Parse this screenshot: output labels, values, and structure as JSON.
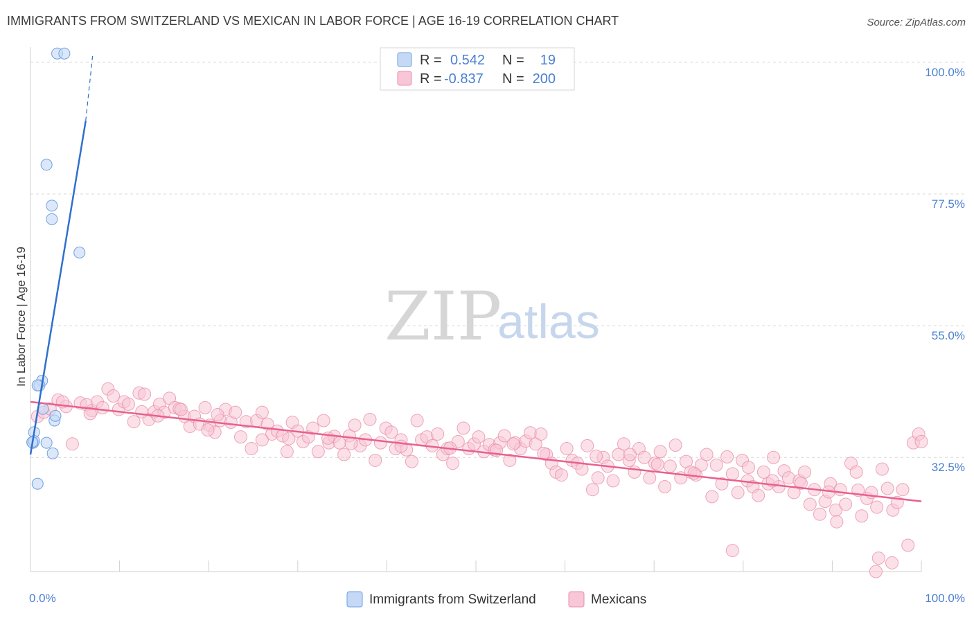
{
  "title": "IMMIGRANTS FROM SWITZERLAND VS MEXICAN IN LABOR FORCE | AGE 16-19 CORRELATION CHART",
  "source": "Source: ZipAtlas.com",
  "watermark": {
    "zip": "ZIP",
    "atlas": "atlas"
  },
  "colors": {
    "blue_fill": "#c5d9f7",
    "blue_stroke": "#6f9fe0",
    "blue_line": "#2f6fcf",
    "pink_fill": "#f8c6d6",
    "pink_stroke": "#ea8fae",
    "pink_line": "#e8608e",
    "tick_label": "#4a7fd1",
    "grid": "#d8d8d8"
  },
  "legend": {
    "r_label": "R =",
    "n_label": "N =",
    "series1_r": "0.542",
    "series1_n": "19",
    "series2_r": "-0.837",
    "series2_n": "200"
  },
  "bottom_legend": [
    "Immigrants from Switzerland",
    "Mexicans"
  ],
  "chart_data": {
    "type": "scatter",
    "title": "IMMIGRANTS FROM SWITZERLAND VS MEXICAN IN LABOR FORCE | AGE 16-19 CORRELATION CHART",
    "xlabel": "",
    "ylabel": "In Labor Force | Age 16-19",
    "xlim": [
      0,
      100
    ],
    "ylim": [
      13,
      102
    ],
    "x_tick_labels": [
      "0.0%",
      "100.0%"
    ],
    "y_ticks": [
      32.5,
      55.0,
      77.5,
      100.0
    ],
    "y_tick_labels": [
      "32.5%",
      "55.0%",
      "77.5%",
      "100.0%"
    ],
    "grid": "horizontal dashed",
    "legend_position": "top-center",
    "series": [
      {
        "name": "Immigrants from Switzerland",
        "color": "#6f9fe0",
        "r": 0.542,
        "n": 19,
        "points": [
          [
            3.0,
            101.5
          ],
          [
            3.8,
            101.5
          ],
          [
            1.8,
            82.5
          ],
          [
            2.4,
            75.5
          ],
          [
            2.4,
            73.2
          ],
          [
            5.5,
            67.5
          ],
          [
            1.3,
            45.6
          ],
          [
            1.0,
            44.8
          ],
          [
            0.8,
            44.8
          ],
          [
            1.4,
            40.8
          ],
          [
            2.7,
            38.8
          ],
          [
            2.8,
            39.6
          ],
          [
            1.8,
            35.0
          ],
          [
            0.4,
            36.8
          ],
          [
            0.3,
            35.0
          ],
          [
            0.4,
            35.3
          ],
          [
            0.2,
            35.1
          ],
          [
            2.5,
            33.2
          ],
          [
            0.8,
            28.0
          ]
        ],
        "trend": {
          "x0": 0.0,
          "y0": 33.0,
          "x1": 6.2,
          "y1": 90.0,
          "dash_x1": 7.0,
          "dash_y1": 101.5
        }
      },
      {
        "name": "Mexicans",
        "color": "#ea8fae",
        "r": -0.837,
        "n": 200,
        "trend": {
          "x0": 0.0,
          "y0": 42.0,
          "x1": 100.0,
          "y1": 25.0
        },
        "points": [
          [
            0.8,
            39.5
          ],
          [
            1.5,
            40.2
          ],
          [
            2.2,
            40.8
          ],
          [
            3.1,
            42.3
          ],
          [
            4.0,
            41.2
          ],
          [
            4.7,
            34.8
          ],
          [
            5.6,
            41.8
          ],
          [
            6.3,
            41.5
          ],
          [
            6.9,
            40.5
          ],
          [
            7.5,
            42.0
          ],
          [
            8.1,
            41.0
          ],
          [
            8.7,
            44.2
          ],
          [
            9.3,
            43.0
          ],
          [
            9.9,
            40.7
          ],
          [
            10.5,
            42.0
          ],
          [
            11.0,
            41.6
          ],
          [
            11.6,
            38.6
          ],
          [
            12.2,
            43.5
          ],
          [
            12.8,
            43.3
          ],
          [
            13.3,
            39.0
          ],
          [
            13.9,
            40.3
          ],
          [
            14.5,
            41.6
          ],
          [
            15.0,
            40.2
          ],
          [
            15.6,
            42.6
          ],
          [
            16.2,
            41.0
          ],
          [
            16.7,
            40.8
          ],
          [
            17.3,
            39.5
          ],
          [
            17.9,
            37.8
          ],
          [
            18.4,
            39.5
          ],
          [
            19.0,
            38.2
          ],
          [
            19.6,
            41.0
          ],
          [
            20.1,
            38.0
          ],
          [
            20.7,
            36.8
          ],
          [
            21.3,
            38.8
          ],
          [
            21.9,
            40.7
          ],
          [
            22.5,
            38.5
          ],
          [
            23.0,
            40.2
          ],
          [
            23.6,
            36.0
          ],
          [
            24.2,
            38.6
          ],
          [
            24.8,
            34.0
          ],
          [
            25.4,
            38.8
          ],
          [
            26.0,
            40.2
          ],
          [
            26.6,
            38.2
          ],
          [
            27.1,
            36.5
          ],
          [
            27.7,
            37.0
          ],
          [
            28.3,
            36.2
          ],
          [
            28.8,
            33.5
          ],
          [
            29.4,
            38.5
          ],
          [
            30.0,
            37.0
          ],
          [
            30.6,
            35.2
          ],
          [
            31.2,
            36.0
          ],
          [
            31.7,
            37.5
          ],
          [
            32.3,
            33.5
          ],
          [
            32.9,
            38.8
          ],
          [
            33.5,
            35.0
          ],
          [
            34.1,
            36.1
          ],
          [
            34.7,
            35.0
          ],
          [
            35.2,
            33.0
          ],
          [
            35.8,
            36.2
          ],
          [
            36.4,
            38.0
          ],
          [
            37.0,
            34.5
          ],
          [
            37.6,
            35.5
          ],
          [
            38.1,
            39.0
          ],
          [
            38.7,
            32.0
          ],
          [
            39.3,
            35.0
          ],
          [
            39.9,
            37.5
          ],
          [
            40.5,
            36.8
          ],
          [
            41.0,
            34.0
          ],
          [
            41.6,
            35.5
          ],
          [
            42.2,
            33.8
          ],
          [
            42.8,
            31.8
          ],
          [
            43.4,
            38.8
          ],
          [
            43.9,
            35.5
          ],
          [
            44.5,
            36.0
          ],
          [
            45.1,
            34.5
          ],
          [
            45.7,
            36.5
          ],
          [
            46.3,
            33.0
          ],
          [
            46.8,
            34.0
          ],
          [
            47.4,
            31.5
          ],
          [
            48.0,
            35.2
          ],
          [
            48.6,
            37.5
          ],
          [
            49.2,
            34.0
          ],
          [
            49.8,
            34.8
          ],
          [
            50.3,
            36.0
          ],
          [
            50.9,
            33.5
          ],
          [
            51.5,
            34.7
          ],
          [
            52.1,
            33.8
          ],
          [
            52.7,
            35.0
          ],
          [
            53.2,
            36.2
          ],
          [
            53.8,
            32.0
          ],
          [
            54.4,
            35.0
          ],
          [
            55.0,
            34.0
          ],
          [
            55.6,
            35.3
          ],
          [
            56.1,
            36.7
          ],
          [
            56.7,
            34.8
          ],
          [
            57.3,
            36.5
          ],
          [
            57.9,
            33.0
          ],
          [
            58.5,
            31.5
          ],
          [
            59.0,
            30.0
          ],
          [
            59.6,
            29.5
          ],
          [
            60.2,
            34.0
          ],
          [
            60.8,
            32.0
          ],
          [
            61.4,
            31.5
          ],
          [
            61.9,
            30.5
          ],
          [
            62.5,
            34.5
          ],
          [
            63.1,
            27.0
          ],
          [
            63.7,
            29.0
          ],
          [
            64.3,
            32.5
          ],
          [
            64.8,
            31.0
          ],
          [
            65.4,
            28.5
          ],
          [
            66.0,
            33.0
          ],
          [
            66.6,
            34.8
          ],
          [
            67.2,
            32.0
          ],
          [
            67.8,
            30.0
          ],
          [
            68.3,
            34.0
          ],
          [
            68.9,
            32.5
          ],
          [
            69.5,
            29.0
          ],
          [
            70.1,
            31.5
          ],
          [
            70.7,
            33.5
          ],
          [
            71.2,
            27.5
          ],
          [
            71.8,
            31.0
          ],
          [
            72.4,
            34.6
          ],
          [
            73.0,
            29.0
          ],
          [
            73.6,
            31.8
          ],
          [
            74.1,
            30.0
          ],
          [
            74.7,
            29.5
          ],
          [
            75.3,
            31.2
          ],
          [
            75.9,
            33.0
          ],
          [
            76.5,
            25.8
          ],
          [
            77.0,
            31.2
          ],
          [
            77.6,
            28.0
          ],
          [
            78.2,
            32.6
          ],
          [
            78.8,
            29.7
          ],
          [
            79.4,
            26.5
          ],
          [
            79.9,
            32.0
          ],
          [
            80.5,
            28.5
          ],
          [
            81.1,
            27.5
          ],
          [
            81.7,
            26.0
          ],
          [
            82.3,
            30.0
          ],
          [
            82.8,
            28.0
          ],
          [
            83.4,
            32.5
          ],
          [
            84.0,
            27.5
          ],
          [
            84.6,
            30.2
          ],
          [
            85.1,
            29.0
          ],
          [
            85.7,
            26.5
          ],
          [
            86.3,
            28.5
          ],
          [
            86.9,
            30.0
          ],
          [
            87.5,
            24.5
          ],
          [
            88.0,
            27.0
          ],
          [
            88.6,
            22.8
          ],
          [
            89.2,
            25.0
          ],
          [
            89.8,
            28.0
          ],
          [
            90.4,
            23.5
          ],
          [
            90.9,
            27.0
          ],
          [
            91.5,
            24.5
          ],
          [
            92.1,
            31.5
          ],
          [
            92.7,
            30.0
          ],
          [
            93.3,
            22.5
          ],
          [
            93.9,
            25.5
          ],
          [
            94.4,
            26.5
          ],
          [
            95.0,
            24.0
          ],
          [
            95.6,
            30.5
          ],
          [
            96.2,
            27.2
          ],
          [
            96.8,
            23.5
          ],
          [
            97.3,
            24.8
          ],
          [
            97.9,
            27.0
          ],
          [
            98.5,
            17.5
          ],
          [
            99.1,
            35.0
          ],
          [
            99.7,
            36.5
          ],
          [
            100.0,
            35.2
          ],
          [
            3.6,
            42.0
          ],
          [
            6.7,
            40.0
          ],
          [
            12.5,
            40.3
          ],
          [
            14.3,
            39.6
          ],
          [
            16.9,
            40.7
          ],
          [
            19.9,
            37.2
          ],
          [
            21.0,
            39.8
          ],
          [
            26.0,
            35.5
          ],
          [
            29.0,
            35.7
          ],
          [
            33.4,
            35.8
          ],
          [
            36.0,
            34.9
          ],
          [
            41.6,
            34.4
          ],
          [
            47.1,
            34.1
          ],
          [
            52.3,
            33.7
          ],
          [
            54.2,
            34.8
          ],
          [
            57.6,
            33.2
          ],
          [
            63.5,
            32.7
          ],
          [
            67.3,
            33.0
          ],
          [
            70.4,
            31.3
          ],
          [
            74.5,
            29.8
          ],
          [
            80.6,
            30.8
          ],
          [
            83.3,
            28.5
          ],
          [
            86.5,
            28.1
          ],
          [
            89.6,
            26.6
          ],
          [
            90.5,
            21.5
          ],
          [
            92.9,
            26.9
          ],
          [
            78.8,
            16.6
          ],
          [
            95.2,
            15.3
          ],
          [
            96.7,
            14.5
          ],
          [
            94.9,
            13.0
          ]
        ]
      }
    ]
  }
}
